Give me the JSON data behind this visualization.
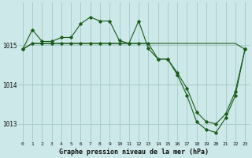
{
  "title": "Graphe pression niveau de la mer (hPa)",
  "background_color": "#cce8e8",
  "grid_color": "#aacccc",
  "line_color": "#1a5c1a",
  "marker_color": "#1a5c1a",
  "xlim": [
    -0.5,
    23.5
  ],
  "ylim": [
    1012.55,
    1016.1
  ],
  "yticks": [
    1013,
    1014,
    1015
  ],
  "xticks": [
    0,
    1,
    2,
    3,
    4,
    5,
    6,
    7,
    8,
    9,
    10,
    11,
    12,
    13,
    14,
    15,
    16,
    17,
    18,
    19,
    20,
    21,
    22,
    23
  ],
  "series_flat_x": [
    0,
    1,
    2,
    3,
    4,
    5,
    6,
    7,
    8,
    9,
    10,
    11,
    12,
    13,
    14,
    15,
    16,
    17,
    18,
    19,
    20,
    21,
    22,
    23
  ],
  "series_flat_y": [
    1014.9,
    1015.05,
    1015.05,
    1015.05,
    1015.05,
    1015.05,
    1015.05,
    1015.05,
    1015.05,
    1015.05,
    1015.05,
    1015.05,
    1015.05,
    1015.05,
    1015.05,
    1015.05,
    1015.05,
    1015.05,
    1015.05,
    1015.05,
    1015.05,
    1015.05,
    1015.05,
    1014.9
  ],
  "series_wavy_x": [
    0,
    1,
    2,
    3,
    4,
    5,
    6,
    7,
    8,
    9,
    10,
    11,
    12,
    13,
    14,
    15,
    16,
    17,
    18,
    19,
    20,
    21,
    22,
    23
  ],
  "series_wavy_y": [
    1014.9,
    1015.4,
    1015.1,
    1015.1,
    1015.2,
    1015.2,
    1015.55,
    1015.72,
    1015.62,
    1015.62,
    1015.12,
    1015.05,
    1015.62,
    1014.92,
    1014.65,
    1014.65,
    1014.25,
    1013.72,
    1013.05,
    1012.85,
    1012.78,
    1013.15,
    1013.72,
    1014.9
  ],
  "series_drop_x": [
    0,
    1,
    2,
    3,
    4,
    5,
    6,
    7,
    8,
    9,
    10,
    11,
    12,
    13,
    14,
    15,
    16,
    17,
    18,
    19,
    20,
    21,
    22,
    23
  ],
  "series_drop_y": [
    1014.9,
    1015.05,
    1015.05,
    1015.05,
    1015.05,
    1015.05,
    1015.05,
    1015.05,
    1015.05,
    1015.05,
    1015.05,
    1015.05,
    1015.05,
    1015.05,
    1014.65,
    1014.65,
    1014.3,
    1013.9,
    1013.3,
    1013.05,
    1013.0,
    1013.25,
    1013.82,
    1014.9
  ]
}
